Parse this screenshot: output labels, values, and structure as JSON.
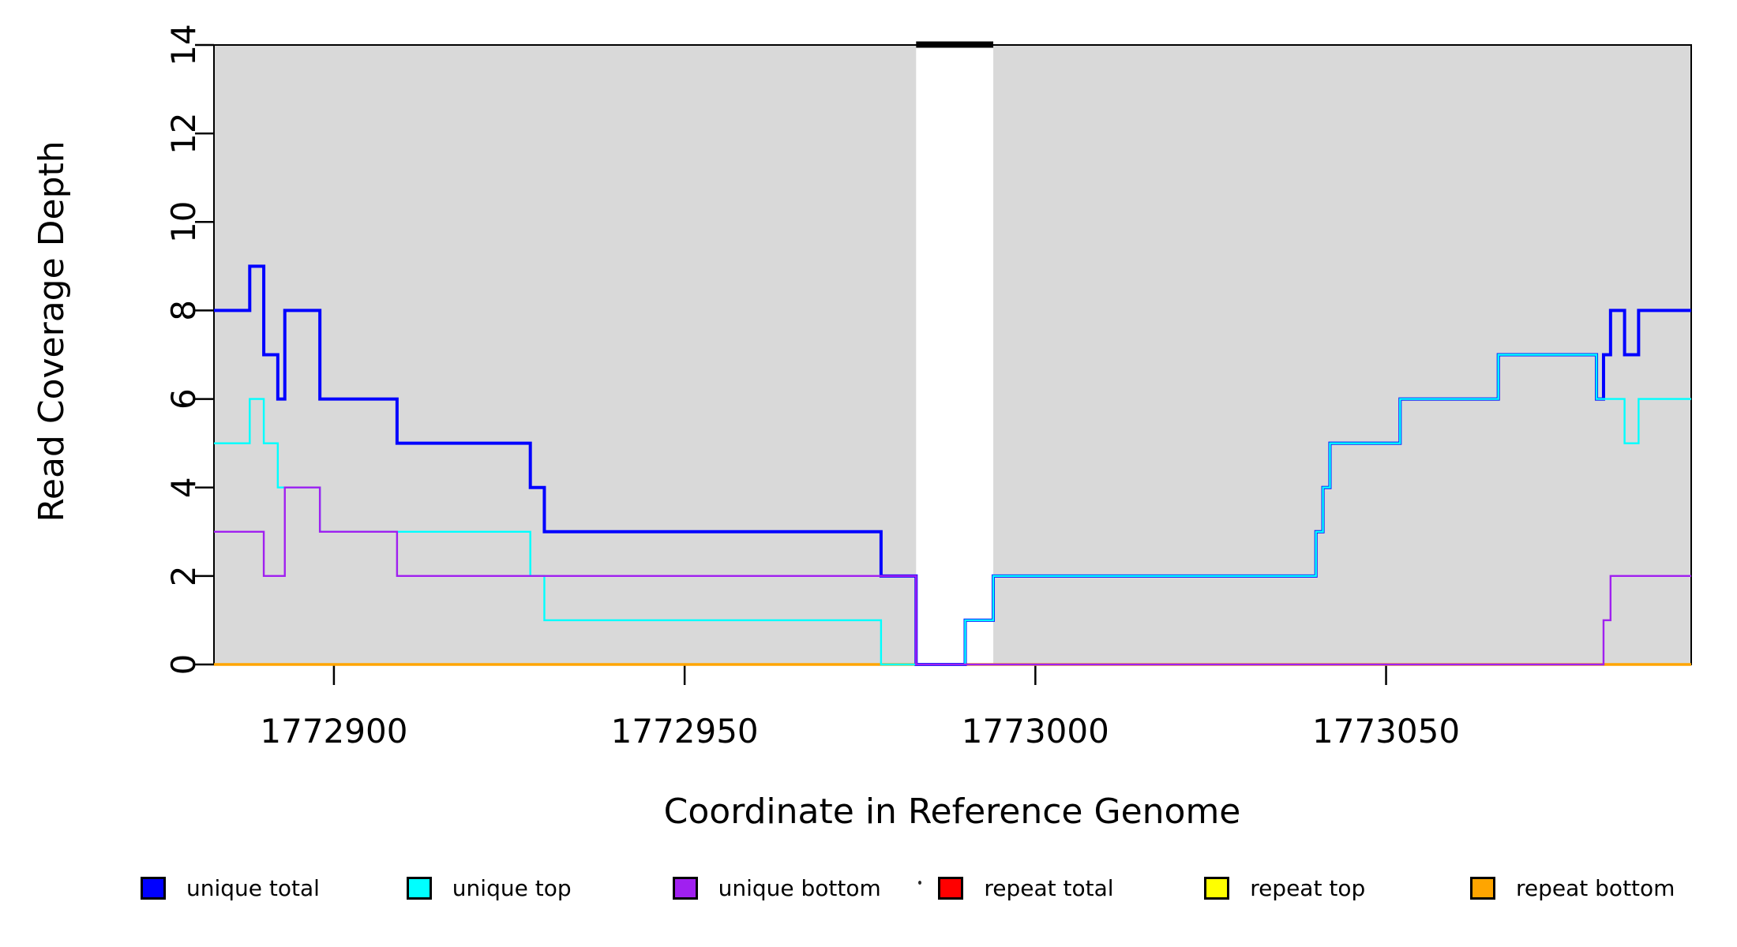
{
  "chart_data": {
    "type": "line",
    "subtype": "step-coverage",
    "title": "",
    "xlabel": "Coordinate in Reference Genome",
    "ylabel": "Read Coverage Depth",
    "x_range": [
      1772882.9,
      1773093.5
    ],
    "y_range": [
      0,
      14
    ],
    "x_ticks": [
      "1772900",
      "1772950",
      "1773000",
      "1773050"
    ],
    "x_tick_values": [
      1772900,
      1772950,
      1773000,
      1773050
    ],
    "y_ticks": [
      "0",
      "2",
      "4",
      "6",
      "8",
      "10",
      "12",
      "14"
    ],
    "y_tick_values": [
      0,
      2,
      4,
      6,
      8,
      10,
      12,
      14
    ],
    "grid": "off",
    "background_shading": {
      "color": "#D9D9D9",
      "regions": [
        {
          "from": 1772882.9,
          "to": 1772983
        },
        {
          "from": 1772994,
          "to": 1773093.5
        }
      ]
    },
    "unshaded_gap": {
      "from": 1772983,
      "to": 1772994,
      "top_marker_color": "#000000"
    },
    "series": [
      {
        "name": "repeat total",
        "color": "#FF0000",
        "width": 3,
        "steps": [
          [
            1772882.9,
            0
          ]
        ]
      },
      {
        "name": "repeat top",
        "color": "#FFFF00",
        "width": 3,
        "steps": [
          [
            1772882.9,
            0
          ]
        ]
      },
      {
        "name": "repeat bottom",
        "color": "#FFA500",
        "width": 3.5,
        "steps": [
          [
            1772882.9,
            0
          ]
        ]
      },
      {
        "name": "unique total",
        "color": "#0000FF",
        "width": 4,
        "steps": [
          [
            1772882.9,
            8
          ],
          [
            1772888,
            9
          ],
          [
            1772890,
            7
          ],
          [
            1772892,
            6
          ],
          [
            1772893,
            8
          ],
          [
            1772898,
            6
          ],
          [
            1772909,
            5
          ],
          [
            1772928,
            4
          ],
          [
            1772930,
            3
          ],
          [
            1772978,
            2
          ],
          [
            1772983,
            0
          ],
          [
            1772990,
            1
          ],
          [
            1772994,
            2
          ],
          [
            1773040,
            3
          ],
          [
            1773041,
            4
          ],
          [
            1773042,
            5
          ],
          [
            1773052,
            6
          ],
          [
            1773066,
            7
          ],
          [
            1773080,
            6
          ],
          [
            1773081,
            7
          ],
          [
            1773082,
            8
          ],
          [
            1773084,
            7
          ],
          [
            1773086,
            8
          ]
        ]
      },
      {
        "name": "unique top",
        "color": "#00FFFF",
        "width": 2.4,
        "steps": [
          [
            1772882.9,
            5
          ],
          [
            1772888,
            6
          ],
          [
            1772890,
            5
          ],
          [
            1772892,
            4
          ],
          [
            1772898,
            3
          ],
          [
            1772928,
            2
          ],
          [
            1772930,
            1
          ],
          [
            1772978,
            0
          ],
          [
            1772990,
            1
          ],
          [
            1772994,
            2
          ],
          [
            1773040,
            3
          ],
          [
            1773041,
            4
          ],
          [
            1773042,
            5
          ],
          [
            1773052,
            6
          ],
          [
            1773066,
            7
          ],
          [
            1773080,
            6
          ],
          [
            1773084,
            5
          ],
          [
            1773086,
            6
          ]
        ]
      },
      {
        "name": "unique bottom",
        "color": "#A020F0",
        "width": 2.4,
        "steps": [
          [
            1772882.9,
            3
          ],
          [
            1772890,
            2
          ],
          [
            1772893,
            4
          ],
          [
            1772898,
            3
          ],
          [
            1772909,
            2
          ],
          [
            1772983,
            0
          ],
          [
            1773081,
            1
          ],
          [
            1773082,
            2
          ]
        ]
      }
    ]
  },
  "legend": {
    "items": [
      {
        "label": "unique total",
        "color": "#0000FF"
      },
      {
        "label": "unique top",
        "color": "#00FFFF"
      },
      {
        "label": "unique bottom",
        "color": "#A020F0"
      },
      {
        "label": "repeat total",
        "color": "#FF0000"
      },
      {
        "label": "repeat top",
        "color": "#FFFF00"
      },
      {
        "label": "repeat bottom",
        "color": "#FFA500"
      }
    ]
  }
}
